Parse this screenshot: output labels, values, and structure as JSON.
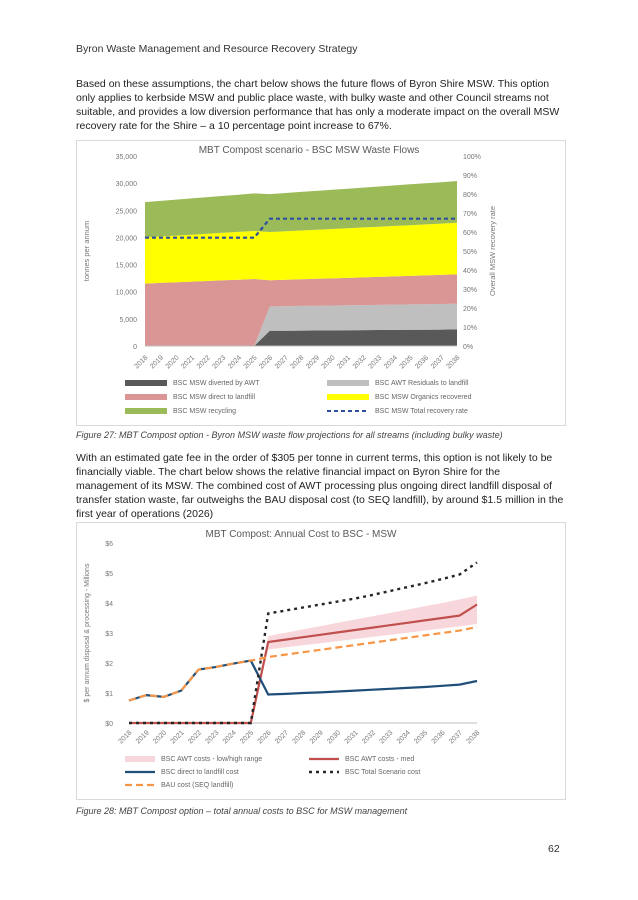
{
  "header": {
    "title": "Byron Waste Management and Resource Recovery Strategy"
  },
  "paragraph1": "Based on these assumptions, the chart below shows the future flows of Byron Shire MSW. This option only applies to kerbside MSW and public place waste, with bulky waste and other Council streams not suitable, and provides a low diversion performance that has only a moderate impact on the overall MSW recovery rate for the Shire – a 10 percentage point increase to 67%.",
  "caption1": "Figure 27: MBT Compost option - Byron MSW waste flow projections for all streams (including bulky waste)",
  "paragraph2": "With an estimated gate fee in the order of $305 per tonne in current terms, this option is not likely to be financially viable. The chart below shows the relative financial impact on Byron Shire for the management of its MSW. The combined cost of AWT processing plus ongoing direct landfill disposal of transfer station waste, far outweighs the BAU disposal cost (to SEQ landfill), by around $1.5 million in the first year of operations (2026)",
  "caption2": "Figure 28: MBT Compost option – total annual costs to BSC for MSW management",
  "page_number": "62",
  "chart_data": [
    {
      "type": "area",
      "title": "MBT Compost scenario - BSC MSW Waste Flows",
      "ylabel": "tonnes per annum",
      "y2label": "Overall MSW recovery rate",
      "ylim": [
        0,
        35000
      ],
      "y2lim": [
        0,
        1
      ],
      "yticks": [
        "0",
        "5,000",
        "10,000",
        "15,000",
        "20,000",
        "25,000",
        "30,000",
        "35,000"
      ],
      "y2ticks": [
        "0%",
        "10%",
        "20%",
        "30%",
        "40%",
        "50%",
        "60%",
        "70%",
        "80%",
        "90%",
        "100%"
      ],
      "x": [
        "2018",
        "2019",
        "2020",
        "2021",
        "2022",
        "2023",
        "2024",
        "2025",
        "2026",
        "2027",
        "2028",
        "2029",
        "2030",
        "2031",
        "2032",
        "2033",
        "2034",
        "2035",
        "2036",
        "2037",
        "2038"
      ],
      "series": [
        {
          "name": "BSC MSW diverted by AWT",
          "color": "#595959",
          "kind": "stack",
          "values": [
            0,
            0,
            0,
            0,
            0,
            0,
            0,
            0,
            2800,
            2820,
            2840,
            2860,
            2880,
            2900,
            2920,
            2940,
            2960,
            2980,
            3000,
            3020,
            3050
          ]
        },
        {
          "name": "BSC AWT Residuals to landfill",
          "color": "#bfbfbf",
          "kind": "stack",
          "values": [
            0,
            0,
            0,
            0,
            0,
            0,
            0,
            0,
            4500,
            4520,
            4540,
            4560,
            4580,
            4600,
            4620,
            4640,
            4660,
            4680,
            4700,
            4720,
            4750
          ]
        },
        {
          "name": "BSC MSW direct to landfill",
          "color": "#d99694",
          "kind": "stack",
          "values": [
            11500,
            11620,
            11740,
            11860,
            11980,
            12100,
            12220,
            12340,
            4800,
            4850,
            4900,
            4950,
            5000,
            5050,
            5100,
            5150,
            5200,
            5250,
            5300,
            5350,
            5400
          ]
        },
        {
          "name": "BSC MSW Organics recovered",
          "color": "#ffff00",
          "kind": "stack",
          "values": [
            8500,
            8550,
            8600,
            8650,
            8700,
            8750,
            8800,
            8850,
            8900,
            8950,
            9000,
            9050,
            9100,
            9150,
            9200,
            9250,
            9300,
            9350,
            9400,
            9450,
            9500
          ]
        },
        {
          "name": "BSC MSW recycling",
          "color": "#9bbb59",
          "kind": "stack",
          "values": [
            6500,
            6560,
            6620,
            6680,
            6740,
            6800,
            6860,
            6920,
            6980,
            7040,
            7100,
            7160,
            7220,
            7280,
            7340,
            7400,
            7460,
            7520,
            7580,
            7640,
            7700
          ]
        },
        {
          "name": "BSC MSW Total recovery rate",
          "color": "#2e4f9e",
          "kind": "rate",
          "values": [
            0.57,
            0.57,
            0.57,
            0.57,
            0.57,
            0.57,
            0.57,
            0.57,
            0.67,
            0.67,
            0.67,
            0.67,
            0.67,
            0.67,
            0.67,
            0.67,
            0.67,
            0.67,
            0.67,
            0.67,
            0.67
          ]
        }
      ],
      "legend_placement": "bottom"
    },
    {
      "type": "line",
      "title": "MBT Compost: Annual Cost to BSC - MSW",
      "ylabel": "$ per annum disposal & processing - Millions",
      "ylim": [
        0,
        6
      ],
      "yticks": [
        "$0",
        "$1",
        "$2",
        "$3",
        "$4",
        "$5",
        "$6"
      ],
      "x": [
        "2018",
        "2019",
        "2020",
        "2021",
        "2022",
        "2023",
        "2024",
        "2025",
        "2026",
        "2027",
        "2028",
        "2029",
        "2030",
        "2031",
        "2032",
        "2033",
        "2034",
        "2035",
        "2036",
        "2037",
        "2038"
      ],
      "series": [
        {
          "name": "BSC AWT costs - low/high range",
          "color": "#f8d7dc",
          "kind": "band",
          "low": [
            0,
            0,
            0,
            0,
            0,
            0,
            0,
            0,
            2.45,
            2.52,
            2.59,
            2.66,
            2.73,
            2.8,
            2.87,
            2.94,
            3.01,
            3.08,
            3.15,
            3.22,
            3.3
          ],
          "high": [
            0,
            0,
            0,
            0,
            0,
            0,
            0,
            0,
            2.9,
            3.01,
            3.12,
            3.23,
            3.34,
            3.45,
            3.56,
            3.67,
            3.78,
            3.89,
            4.0,
            4.12,
            4.25
          ]
        },
        {
          "name": "BSC AWT costs - med",
          "color": "#c0504d",
          "kind": "line",
          "values": [
            0,
            0,
            0,
            0,
            0,
            0,
            0,
            0,
            2.7,
            2.78,
            2.86,
            2.94,
            3.02,
            3.1,
            3.18,
            3.26,
            3.34,
            3.42,
            3.5,
            3.58,
            3.95
          ]
        },
        {
          "name": "BSC direct to landfill cost",
          "color": "#1f4e79",
          "kind": "line",
          "values": [
            0.75,
            0.93,
            0.87,
            1.08,
            1.78,
            1.87,
            1.98,
            2.08,
            0.95,
            0.97,
            1.0,
            1.02,
            1.05,
            1.08,
            1.11,
            1.14,
            1.17,
            1.2,
            1.24,
            1.28,
            1.4
          ]
        },
        {
          "name": "BSC Total Scenario cost",
          "color": "#262626",
          "kind": "dotted",
          "values": [
            0,
            0,
            0,
            0,
            0,
            0,
            0,
            0,
            3.65,
            3.75,
            3.85,
            3.95,
            4.05,
            4.15,
            4.27,
            4.4,
            4.53,
            4.66,
            4.8,
            4.95,
            5.35
          ]
        },
        {
          "name": "BAU cost (SEQ landfill)",
          "color": "#f79646",
          "kind": "dashed",
          "values": [
            0.75,
            0.93,
            0.87,
            1.08,
            1.78,
            1.87,
            1.98,
            2.08,
            2.2,
            2.28,
            2.36,
            2.44,
            2.52,
            2.6,
            2.68,
            2.76,
            2.84,
            2.92,
            3.0,
            3.08,
            3.2
          ]
        }
      ],
      "legend_placement": "bottom"
    }
  ]
}
